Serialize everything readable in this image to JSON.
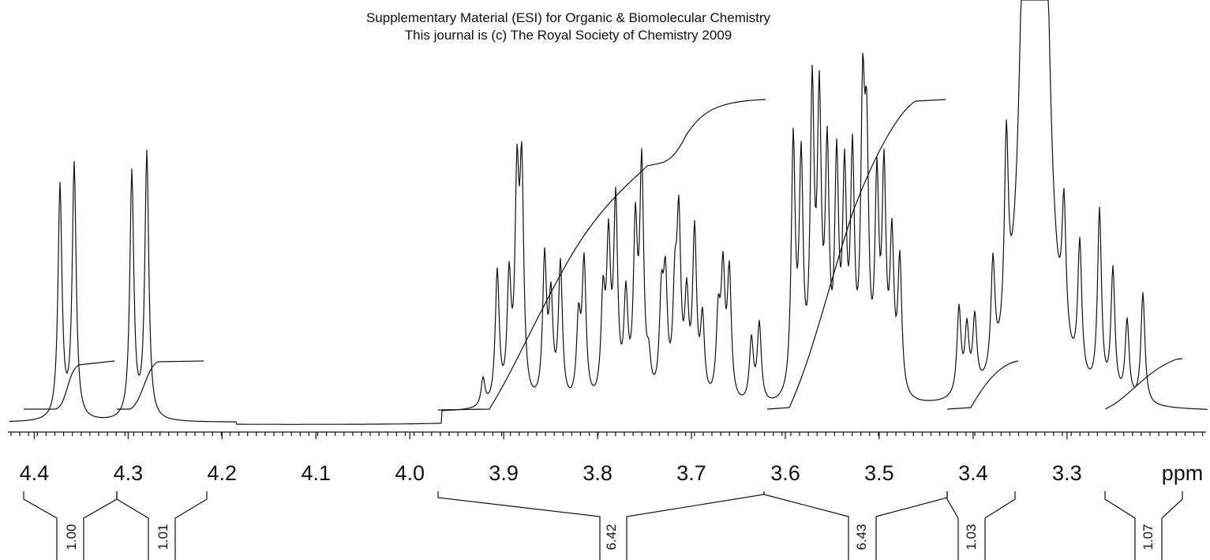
{
  "header": {
    "lines": [
      "Supplementary Material (ESI) for Organic & Biomolecular Chemistry",
      "This journal is (c) The Royal Society of Chemistry 2009"
    ]
  },
  "axis": {
    "label": "ppm",
    "xlim": [
      4.418,
      3.146
    ],
    "ticks": [
      4.4,
      4.3,
      4.2,
      4.1,
      {
        "value": 4.0,
        "label": "4.0"
      },
      3.9,
      3.8,
      3.7,
      3.6,
      3.5,
      3.4,
      3.3
    ]
  },
  "integrals": [
    "1.00",
    "1.01",
    "6.42",
    "6.43",
    "1.03",
    "1.07"
  ]
}
